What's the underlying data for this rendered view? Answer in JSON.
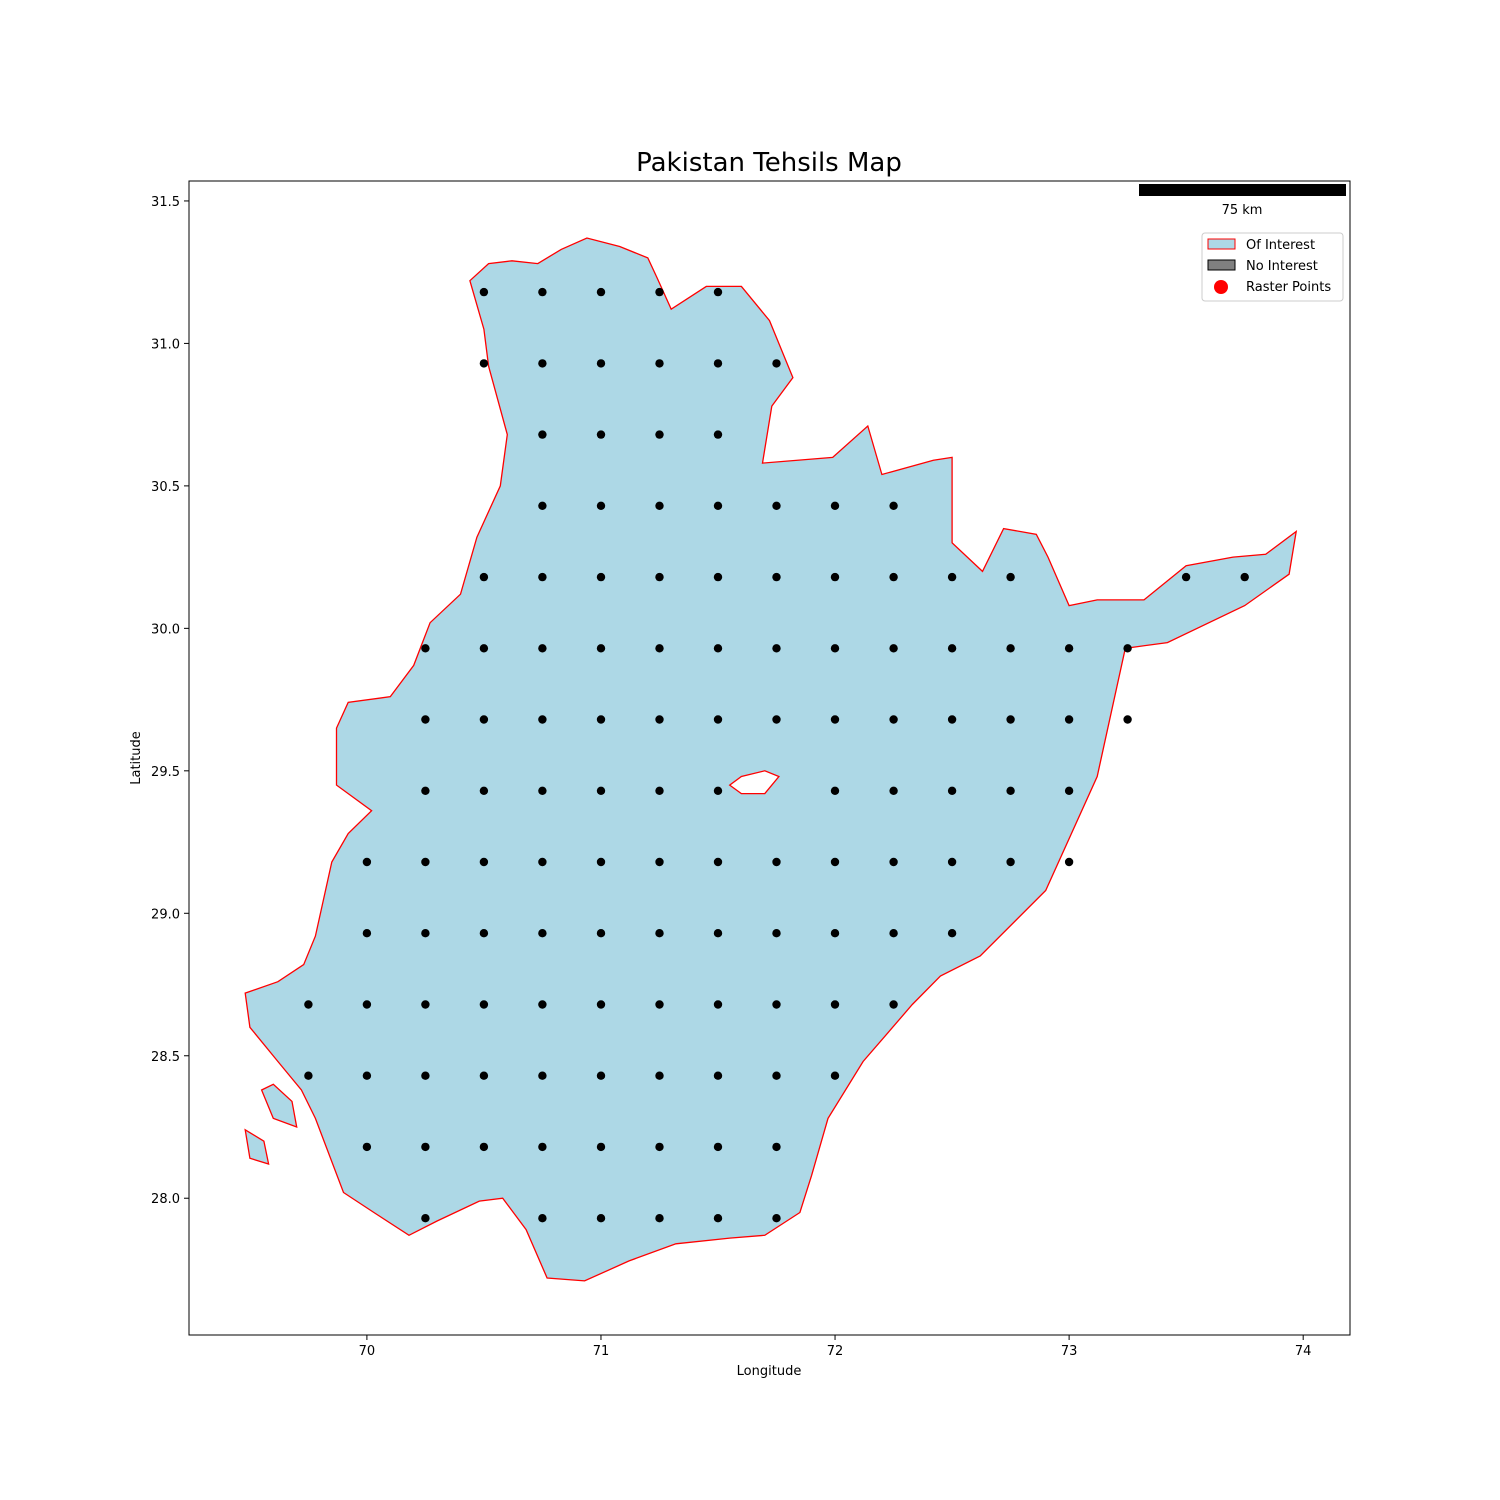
{
  "title": "Pakistan Tehsils Map",
  "xlabel": "Longitude",
  "ylabel": "Latitude",
  "scale_bar_label": "75 km",
  "legend": {
    "placement": "upper-right",
    "items": [
      {
        "label": "Of Interest",
        "kind": "patch",
        "fill": "#add8e6",
        "stroke": "#ff0000"
      },
      {
        "label": "No Interest",
        "kind": "patch",
        "fill": "#808080",
        "stroke": "#000000"
      },
      {
        "label": "Raster Points",
        "kind": "marker",
        "fill": "#ff0000"
      }
    ]
  },
  "colors": {
    "region_fill": "#add8e6",
    "region_border": "#ff0000",
    "point": "#000000"
  },
  "chart_data": {
    "type": "scatter",
    "title": "Pakistan Tehsils Map",
    "xlabel": "Longitude",
    "ylabel": "Latitude",
    "xlim": [
      69.24,
      74.2
    ],
    "ylim": [
      27.52,
      31.57
    ],
    "xticks": [
      70,
      71,
      72,
      73,
      74
    ],
    "yticks": [
      28.0,
      28.5,
      29.0,
      29.5,
      30.0,
      30.5,
      31.0,
      31.5
    ],
    "xtick_labels": [
      "70",
      "71",
      "72",
      "73",
      "74"
    ],
    "ytick_labels": [
      "28.0",
      "28.5",
      "29.0",
      "29.5",
      "30.0",
      "30.5",
      "31.0",
      "31.5"
    ],
    "grid": false,
    "series": [
      {
        "name": "Raster Points",
        "points": [
          [
            70.5,
            31.18
          ],
          [
            70.75,
            31.18
          ],
          [
            71.0,
            31.18
          ],
          [
            71.25,
            31.18
          ],
          [
            71.5,
            31.18
          ],
          [
            70.5,
            30.93
          ],
          [
            70.75,
            30.93
          ],
          [
            71.0,
            30.93
          ],
          [
            71.25,
            30.93
          ],
          [
            71.5,
            30.93
          ],
          [
            71.75,
            30.93
          ],
          [
            70.75,
            30.68
          ],
          [
            71.0,
            30.68
          ],
          [
            71.25,
            30.68
          ],
          [
            71.5,
            30.68
          ],
          [
            70.75,
            30.43
          ],
          [
            71.0,
            30.43
          ],
          [
            71.25,
            30.43
          ],
          [
            71.5,
            30.43
          ],
          [
            71.75,
            30.43
          ],
          [
            72.0,
            30.43
          ],
          [
            72.25,
            30.43
          ],
          [
            70.5,
            30.18
          ],
          [
            70.75,
            30.18
          ],
          [
            71.0,
            30.18
          ],
          [
            71.25,
            30.18
          ],
          [
            71.5,
            30.18
          ],
          [
            71.75,
            30.18
          ],
          [
            72.0,
            30.18
          ],
          [
            72.25,
            30.18
          ],
          [
            72.5,
            30.18
          ],
          [
            72.75,
            30.18
          ],
          [
            73.5,
            30.18
          ],
          [
            73.75,
            30.18
          ],
          [
            70.25,
            29.93
          ],
          [
            70.5,
            29.93
          ],
          [
            70.75,
            29.93
          ],
          [
            71.0,
            29.93
          ],
          [
            71.25,
            29.93
          ],
          [
            71.5,
            29.93
          ],
          [
            71.75,
            29.93
          ],
          [
            72.0,
            29.93
          ],
          [
            72.25,
            29.93
          ],
          [
            72.5,
            29.93
          ],
          [
            72.75,
            29.93
          ],
          [
            73.0,
            29.93
          ],
          [
            73.25,
            29.93
          ],
          [
            70.25,
            29.68
          ],
          [
            70.5,
            29.68
          ],
          [
            70.75,
            29.68
          ],
          [
            71.0,
            29.68
          ],
          [
            71.25,
            29.68
          ],
          [
            71.5,
            29.68
          ],
          [
            71.75,
            29.68
          ],
          [
            72.0,
            29.68
          ],
          [
            72.25,
            29.68
          ],
          [
            72.5,
            29.68
          ],
          [
            72.75,
            29.68
          ],
          [
            73.0,
            29.68
          ],
          [
            73.25,
            29.68
          ],
          [
            70.25,
            29.43
          ],
          [
            70.5,
            29.43
          ],
          [
            70.75,
            29.43
          ],
          [
            71.0,
            29.43
          ],
          [
            71.25,
            29.43
          ],
          [
            71.5,
            29.43
          ],
          [
            72.0,
            29.43
          ],
          [
            72.25,
            29.43
          ],
          [
            72.5,
            29.43
          ],
          [
            72.75,
            29.43
          ],
          [
            73.0,
            29.43
          ],
          [
            70.0,
            29.18
          ],
          [
            70.25,
            29.18
          ],
          [
            70.5,
            29.18
          ],
          [
            70.75,
            29.18
          ],
          [
            71.0,
            29.18
          ],
          [
            71.25,
            29.18
          ],
          [
            71.5,
            29.18
          ],
          [
            71.75,
            29.18
          ],
          [
            72.0,
            29.18
          ],
          [
            72.25,
            29.18
          ],
          [
            72.5,
            29.18
          ],
          [
            72.75,
            29.18
          ],
          [
            73.0,
            29.18
          ],
          [
            70.0,
            28.93
          ],
          [
            70.25,
            28.93
          ],
          [
            70.5,
            28.93
          ],
          [
            70.75,
            28.93
          ],
          [
            71.0,
            28.93
          ],
          [
            71.25,
            28.93
          ],
          [
            71.5,
            28.93
          ],
          [
            71.75,
            28.93
          ],
          [
            72.0,
            28.93
          ],
          [
            72.25,
            28.93
          ],
          [
            72.5,
            28.93
          ],
          [
            69.75,
            28.68
          ],
          [
            70.0,
            28.68
          ],
          [
            70.25,
            28.68
          ],
          [
            70.5,
            28.68
          ],
          [
            70.75,
            28.68
          ],
          [
            71.0,
            28.68
          ],
          [
            71.25,
            28.68
          ],
          [
            71.5,
            28.68
          ],
          [
            71.75,
            28.68
          ],
          [
            72.0,
            28.68
          ],
          [
            72.25,
            28.68
          ],
          [
            69.75,
            28.43
          ],
          [
            70.0,
            28.43
          ],
          [
            70.25,
            28.43
          ],
          [
            70.5,
            28.43
          ],
          [
            70.75,
            28.43
          ],
          [
            71.0,
            28.43
          ],
          [
            71.25,
            28.43
          ],
          [
            71.5,
            28.43
          ],
          [
            71.75,
            28.43
          ],
          [
            72.0,
            28.43
          ],
          [
            70.0,
            28.18
          ],
          [
            70.25,
            28.18
          ],
          [
            70.5,
            28.18
          ],
          [
            70.75,
            28.18
          ],
          [
            71.0,
            28.18
          ],
          [
            71.25,
            28.18
          ],
          [
            71.5,
            28.18
          ],
          [
            71.75,
            28.18
          ],
          [
            70.25,
            27.93
          ],
          [
            70.75,
            27.93
          ],
          [
            71.0,
            27.93
          ],
          [
            71.25,
            27.93
          ],
          [
            71.5,
            27.93
          ],
          [
            71.75,
            27.93
          ]
        ]
      }
    ],
    "region": {
      "outline": [
        [
          70.44,
          31.22
        ],
        [
          70.52,
          31.28
        ],
        [
          70.62,
          31.29
        ],
        [
          70.73,
          31.28
        ],
        [
          70.83,
          31.33
        ],
        [
          70.94,
          31.37
        ],
        [
          71.08,
          31.34
        ],
        [
          71.2,
          31.3
        ],
        [
          71.24,
          31.23
        ],
        [
          71.3,
          31.12
        ],
        [
          71.45,
          31.2
        ],
        [
          71.6,
          31.2
        ],
        [
          71.72,
          31.08
        ],
        [
          71.82,
          30.88
        ],
        [
          71.73,
          30.78
        ],
        [
          71.69,
          30.58
        ],
        [
          71.99,
          30.6
        ],
        [
          72.14,
          30.71
        ],
        [
          72.2,
          30.54
        ],
        [
          72.42,
          30.59
        ],
        [
          72.5,
          30.6
        ],
        [
          72.5,
          30.3
        ],
        [
          72.63,
          30.2
        ],
        [
          72.72,
          30.35
        ],
        [
          72.86,
          30.33
        ],
        [
          72.91,
          30.25
        ],
        [
          73.0,
          30.08
        ],
        [
          73.12,
          30.1
        ],
        [
          73.32,
          30.1
        ],
        [
          73.5,
          30.22
        ],
        [
          73.7,
          30.25
        ],
        [
          73.84,
          30.26
        ],
        [
          73.97,
          30.34
        ],
        [
          73.94,
          30.19
        ],
        [
          73.75,
          30.08
        ],
        [
          73.42,
          29.95
        ],
        [
          73.24,
          29.93
        ],
        [
          73.12,
          29.48
        ],
        [
          72.9,
          29.08
        ],
        [
          72.62,
          28.85
        ],
        [
          72.45,
          28.78
        ],
        [
          72.33,
          28.68
        ],
        [
          72.12,
          28.48
        ],
        [
          71.97,
          28.28
        ],
        [
          71.9,
          28.08
        ],
        [
          71.85,
          27.95
        ],
        [
          71.7,
          27.87
        ],
        [
          71.55,
          27.86
        ],
        [
          71.32,
          27.84
        ],
        [
          71.12,
          27.78
        ],
        [
          70.93,
          27.71
        ],
        [
          70.77,
          27.72
        ],
        [
          70.68,
          27.89
        ],
        [
          70.58,
          28.0
        ],
        [
          70.48,
          27.99
        ],
        [
          70.3,
          27.92
        ],
        [
          70.18,
          27.87
        ],
        [
          70.03,
          27.95
        ],
        [
          69.9,
          28.02
        ],
        [
          69.78,
          28.28
        ],
        [
          69.72,
          28.38
        ],
        [
          69.62,
          28.48
        ],
        [
          69.5,
          28.6
        ],
        [
          69.48,
          28.72
        ],
        [
          69.62,
          28.76
        ],
        [
          69.73,
          28.82
        ],
        [
          69.78,
          28.92
        ],
        [
          69.85,
          29.18
        ],
        [
          69.92,
          29.28
        ],
        [
          70.02,
          29.36
        ],
        [
          69.87,
          29.45
        ],
        [
          69.87,
          29.65
        ],
        [
          69.92,
          29.74
        ],
        [
          70.1,
          29.76
        ],
        [
          70.2,
          29.87
        ],
        [
          70.27,
          30.02
        ],
        [
          70.4,
          30.12
        ],
        [
          70.47,
          30.32
        ],
        [
          70.57,
          30.5
        ],
        [
          70.6,
          30.68
        ],
        [
          70.52,
          30.92
        ],
        [
          70.5,
          31.05
        ],
        [
          70.44,
          31.22
        ]
      ],
      "islands": [
        [
          [
            69.55,
            28.38
          ],
          [
            69.6,
            28.28
          ],
          [
            69.7,
            28.25
          ],
          [
            69.68,
            28.34
          ],
          [
            69.6,
            28.4
          ],
          [
            69.55,
            28.38
          ]
        ],
        [
          [
            69.48,
            28.24
          ],
          [
            69.5,
            28.14
          ],
          [
            69.58,
            28.12
          ],
          [
            69.56,
            28.2
          ],
          [
            69.48,
            28.24
          ]
        ]
      ],
      "holes": [
        [
          [
            71.55,
            29.45
          ],
          [
            71.6,
            29.42
          ],
          [
            71.7,
            29.42
          ],
          [
            71.76,
            29.48
          ],
          [
            71.7,
            29.5
          ],
          [
            71.6,
            29.48
          ],
          [
            71.55,
            29.45
          ]
        ]
      ]
    }
  }
}
